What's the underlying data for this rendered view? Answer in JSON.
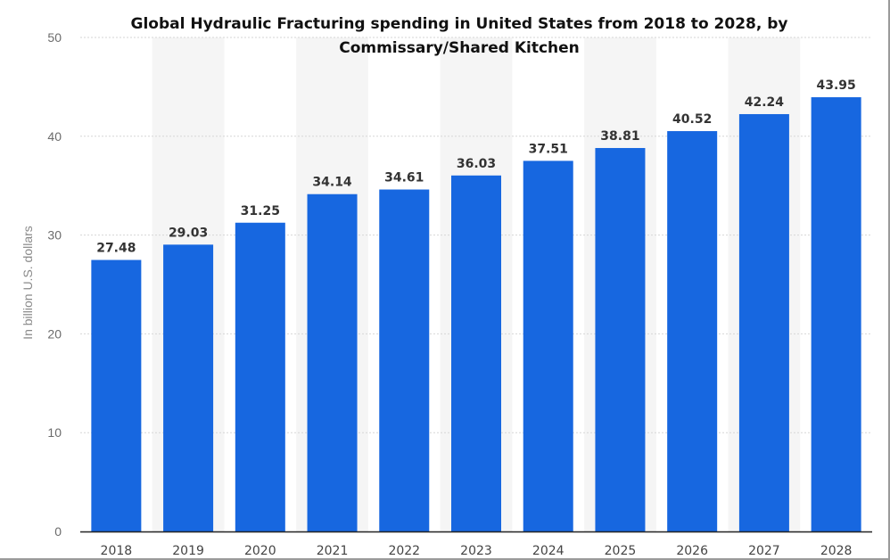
{
  "chart_data": {
    "type": "bar",
    "title": "Global Hydraulic Fracturing spending in United States from 2018 to 2028, by Commissary/Shared Kitchen",
    "xlabel": "",
    "ylabel": "In billion U.S. dollars",
    "categories": [
      "2018",
      "2019",
      "2020",
      "2021",
      "2022",
      "2023",
      "2024",
      "2025",
      "2026",
      "2027",
      "2028"
    ],
    "values": [
      27.48,
      29.03,
      31.25,
      34.14,
      34.61,
      36.03,
      37.51,
      38.81,
      40.52,
      42.24,
      43.95
    ],
    "value_labels": [
      "27.48",
      "29.03",
      "31.25",
      "34.14",
      "34.61",
      "36.03",
      "37.51",
      "38.81",
      "40.52",
      "42.24",
      "43.95"
    ],
    "ylim": [
      0,
      50
    ],
    "yticks": [
      "0",
      "10",
      "20",
      "30",
      "40",
      "50"
    ],
    "grid": true,
    "legend": "none",
    "colors": {
      "bar": "#1767e0",
      "band": "#f5f5f5",
      "grid": "#d6d6d6"
    }
  }
}
